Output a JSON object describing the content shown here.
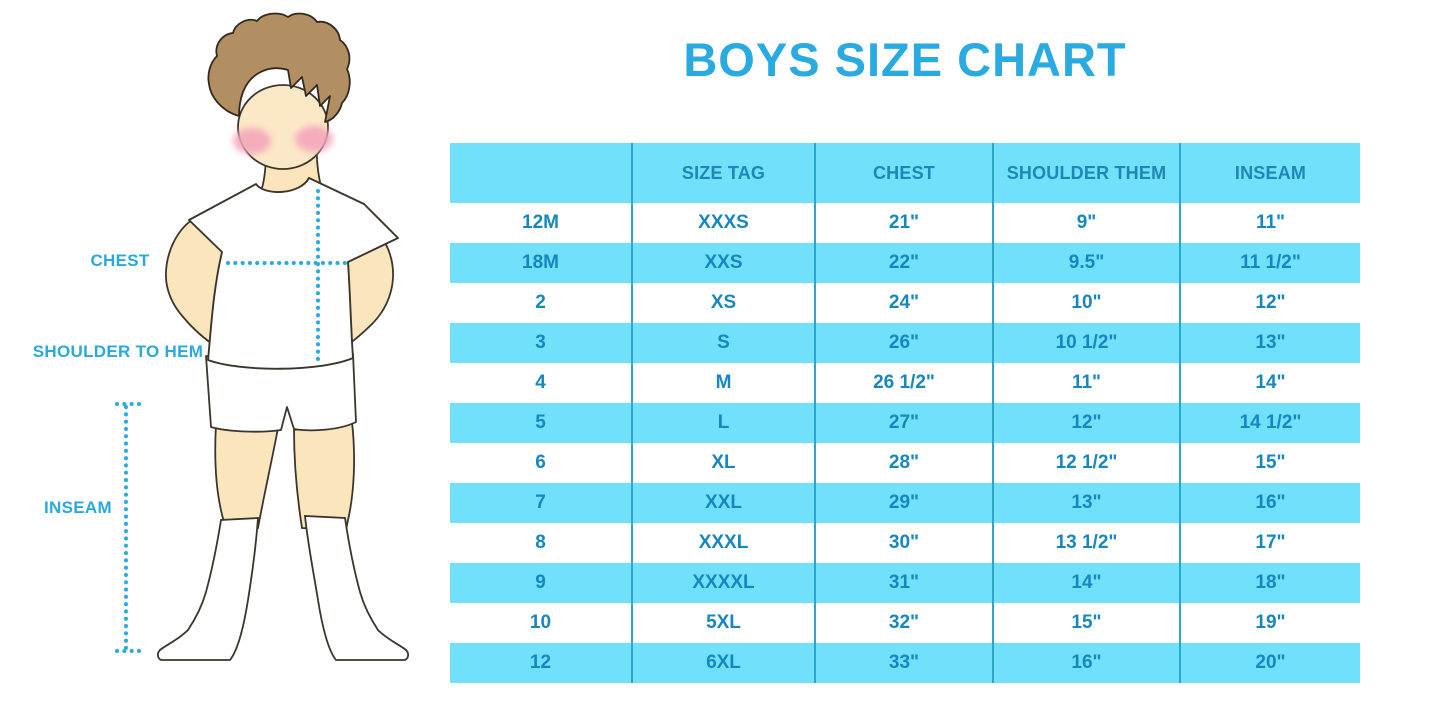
{
  "title": "BOYS SIZE CHART",
  "colors": {
    "accent_blue": "#29ABE2",
    "table_band_cyan": "#71E0FA",
    "table_text_blue": "#1787C2",
    "table_divider_blue": "#2CA6D0",
    "skin": "#FAE5BC",
    "hair_brown": "#B28F63",
    "blush_pink": "#F4A3BB"
  },
  "figure": {
    "labels": {
      "chest": "CHEST",
      "shoulder_to_hem": "SHOULDER TO HEM",
      "inseam": "INSEAM"
    }
  },
  "chart_data": {
    "type": "table",
    "title": "BOYS SIZE CHART",
    "columns": [
      "",
      "SIZE TAG",
      "CHEST",
      "SHOULDER THEM",
      "INSEAM"
    ],
    "rows": [
      [
        "12M",
        "XXXS",
        "21\"",
        "9\"",
        "11\""
      ],
      [
        "18M",
        "XXS",
        "22\"",
        "9.5\"",
        "11 1/2\""
      ],
      [
        "2",
        "XS",
        "24\"",
        "10\"",
        "12\""
      ],
      [
        "3",
        "S",
        "26\"",
        "10 1/2\"",
        "13\""
      ],
      [
        "4",
        "M",
        "26 1/2\"",
        "11\"",
        "14\""
      ],
      [
        "5",
        "L",
        "27\"",
        "12\"",
        "14 1/2\""
      ],
      [
        "6",
        "XL",
        "28\"",
        "12 1/2\"",
        "15\""
      ],
      [
        "7",
        "XXL",
        "29\"",
        "13\"",
        "16\""
      ],
      [
        "8",
        "XXXL",
        "30\"",
        "13 1/2\"",
        "17\""
      ],
      [
        "9",
        "XXXXL",
        "31\"",
        "14\"",
        "18\""
      ],
      [
        "10",
        "5XL",
        "32\"",
        "15\"",
        "19\""
      ],
      [
        "12",
        "6XL",
        "33\"",
        "16\"",
        "20\""
      ]
    ],
    "layout_hints": {
      "striped": "alternating white and cyan rows",
      "gridlines": "vertical dividers only"
    }
  }
}
